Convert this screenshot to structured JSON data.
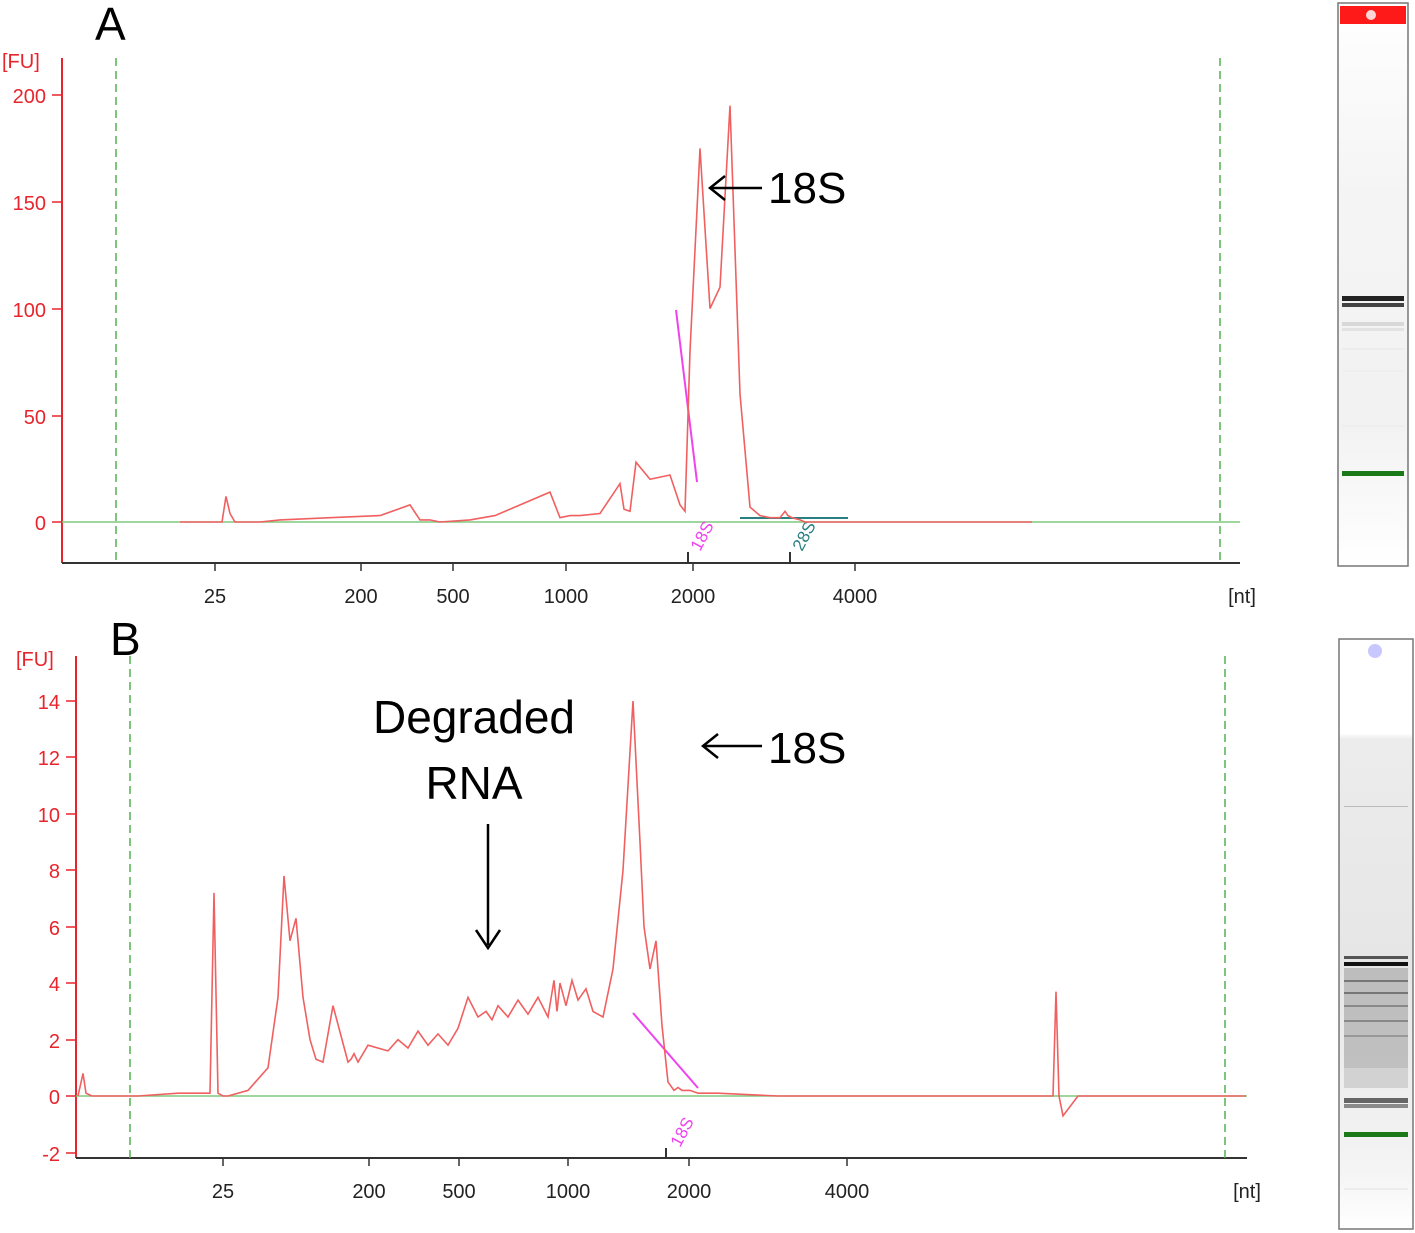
{
  "chart_data": [
    {
      "panel": "A",
      "type": "line",
      "title": "A",
      "ylabel": "[FU]",
      "xlabel": "[nt]",
      "ylim": [
        -15,
        215
      ],
      "yticks": [
        0,
        50,
        100,
        150,
        200
      ],
      "xticks": [
        "25",
        "200",
        "500",
        "1000",
        "2000",
        "4000"
      ],
      "markers": [
        {
          "label": "18S",
          "color": "#ee44ee"
        },
        {
          "label": "28S",
          "color": "#2a8080"
        }
      ],
      "annotation": "18S",
      "series": [
        {
          "name": "electropherogram",
          "color": "#f06060",
          "x": [
            0,
            35,
            42,
            46,
            50,
            55,
            60,
            72,
            80,
            100,
            150,
            200,
            230,
            240,
            250,
            260,
            290,
            315,
            370,
            380,
            390,
            400,
            420,
            440,
            444,
            450,
            456,
            470,
            490,
            500,
            505,
            510,
            520,
            530,
            540,
            550,
            560,
            570,
            580,
            590,
            600,
            605,
            608,
            612,
            620,
            625,
            630,
            638,
            660,
            680,
            700,
            760,
            820,
            852
          ],
          "y": [
            0,
            0,
            0,
            12,
            4,
            0,
            0,
            0,
            0,
            1,
            2,
            3,
            8,
            1,
            1,
            0,
            1,
            3,
            14,
            2,
            3,
            3,
            4,
            18,
            6,
            5,
            28,
            20,
            22,
            8,
            5,
            80,
            175,
            100,
            110,
            195,
            60,
            7,
            3,
            2,
            2,
            5,
            3,
            2,
            1,
            0,
            0,
            0,
            0,
            0,
            0,
            0,
            0,
            0
          ]
        }
      ]
    },
    {
      "panel": "B",
      "type": "line",
      "title": "B",
      "ylabel": "[FU]",
      "xlabel": "[nt]",
      "ylim": [
        -2.2,
        15
      ],
      "yticks": [
        -2,
        0,
        2,
        4,
        6,
        8,
        10,
        12,
        14
      ],
      "xticks": [
        "25",
        "200",
        "500",
        "1000",
        "2000",
        "4000"
      ],
      "markers": [
        {
          "label": "18S",
          "color": "#ee44ee"
        }
      ],
      "annotation": "18S",
      "annotation2": [
        "Degraded",
        "RNA"
      ],
      "series": [
        {
          "name": "electropherogram",
          "color": "#f06060",
          "x": [
            0,
            5,
            8,
            14,
            20,
            30,
            60,
            100,
            132,
            136,
            140,
            145,
            150,
            170,
            190,
            200,
            206,
            212,
            218,
            225,
            232,
            238,
            245,
            255,
            270,
            273,
            276,
            280,
            290,
            310,
            320,
            330,
            340,
            350,
            360,
            370,
            380,
            390,
            400,
            408,
            414,
            420,
            430,
            440,
            450,
            460,
            470,
            476,
            479,
            482,
            488,
            494,
            500,
            508,
            515,
            525,
            535,
            545,
            555,
            562,
            566,
            572,
            578,
            584,
            590,
            596,
            600,
            604,
            612,
            620,
            640,
            700,
            760,
            800,
            860,
            900,
            950,
            975,
            978,
            981,
            985,
            1000,
            1060,
            1100,
            1168
          ],
          "y": [
            0,
            0.8,
            0.1,
            0,
            0,
            0,
            0,
            0.1,
            0.1,
            7.2,
            0.1,
            0,
            0,
            0.2,
            1,
            3.5,
            7.8,
            5.5,
            6.3,
            3.5,
            2,
            1.3,
            1.2,
            3.2,
            1.2,
            1.3,
            1.5,
            1.2,
            1.8,
            1.6,
            2,
            1.7,
            2.3,
            1.8,
            2.2,
            1.8,
            2.4,
            3.5,
            2.8,
            3,
            2.7,
            3.2,
            2.8,
            3.4,
            2.9,
            3.5,
            2.8,
            4.1,
            3,
            4,
            3.2,
            4.1,
            3.4,
            3.8,
            3,
            2.8,
            4.5,
            8,
            14,
            9,
            6,
            4.5,
            5.5,
            2.5,
            0.5,
            0.2,
            0.3,
            0.2,
            0.2,
            0.1,
            0.1,
            0,
            0,
            0,
            0,
            0,
            0,
            0,
            3.7,
            0,
            -0.7,
            0,
            0,
            0,
            0
          ]
        }
      ]
    }
  ],
  "gels": [
    {
      "panel": "A",
      "top_marker_color": "#ff1a1a",
      "lower_marker_color": "#1a7a1a"
    },
    {
      "panel": "B",
      "top_marker_color": "#c8c8ff",
      "lower_marker_color": "#1a7a1a"
    }
  ]
}
